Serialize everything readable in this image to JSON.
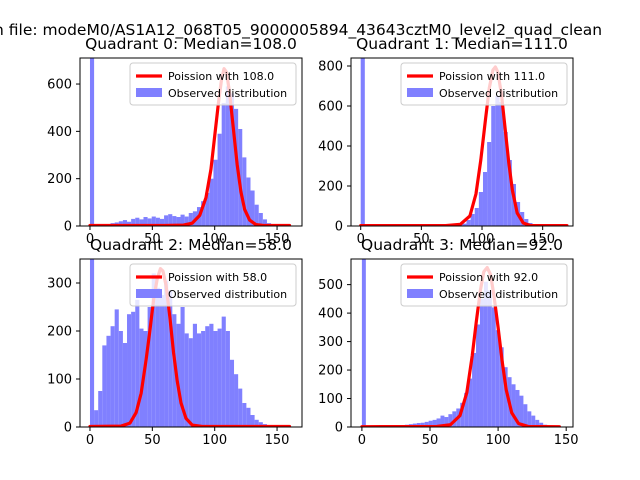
{
  "suptitle": "n file: modeM0/AS1A12_068T05_9000005894_43643cztM0_level2_quad_clean",
  "colors": {
    "hist": "#8080ff",
    "fit": "#ff0000",
    "axis": "#000000"
  },
  "chart_data": [
    {
      "type": "bar",
      "title": "Quadrant 0: Median=108.0",
      "legend": {
        "fit_label": "Poission with 108.0",
        "hist_label": "Observed distribution",
        "placement": "top-right"
      },
      "xlim": [
        -8,
        170
      ],
      "ylim": [
        0,
        710
      ],
      "xticks": [
        0,
        50,
        100,
        150
      ],
      "yticks": [
        0,
        200,
        400,
        600
      ],
      "bin_width": 3.3,
      "bins": [
        {
          "x": 0,
          "y": 710
        },
        {
          "x": 3.3,
          "y": 0
        },
        {
          "x": 6.6,
          "y": 2
        },
        {
          "x": 9.9,
          "y": 5
        },
        {
          "x": 13.2,
          "y": 8
        },
        {
          "x": 16.5,
          "y": 12
        },
        {
          "x": 19.8,
          "y": 15
        },
        {
          "x": 23.1,
          "y": 20
        },
        {
          "x": 26.4,
          "y": 25
        },
        {
          "x": 29.7,
          "y": 18
        },
        {
          "x": 33.0,
          "y": 30
        },
        {
          "x": 36.3,
          "y": 35
        },
        {
          "x": 39.6,
          "y": 28
        },
        {
          "x": 42.9,
          "y": 38
        },
        {
          "x": 46.2,
          "y": 32
        },
        {
          "x": 49.5,
          "y": 40
        },
        {
          "x": 52.8,
          "y": 35
        },
        {
          "x": 56.1,
          "y": 30
        },
        {
          "x": 59.4,
          "y": 45
        },
        {
          "x": 62.7,
          "y": 50
        },
        {
          "x": 66.0,
          "y": 42
        },
        {
          "x": 69.3,
          "y": 38
        },
        {
          "x": 72.6,
          "y": 48
        },
        {
          "x": 75.9,
          "y": 40
        },
        {
          "x": 79.2,
          "y": 55
        },
        {
          "x": 82.5,
          "y": 62
        },
        {
          "x": 85.8,
          "y": 80
        },
        {
          "x": 89.1,
          "y": 105
        },
        {
          "x": 92.4,
          "y": 140
        },
        {
          "x": 95.7,
          "y": 200
        },
        {
          "x": 99.0,
          "y": 280
        },
        {
          "x": 102.3,
          "y": 390
        },
        {
          "x": 105.6,
          "y": 520
        },
        {
          "x": 108.9,
          "y": 590
        },
        {
          "x": 112.2,
          "y": 560
        },
        {
          "x": 115.5,
          "y": 495
        },
        {
          "x": 118.8,
          "y": 410
        },
        {
          "x": 122.1,
          "y": 290
        },
        {
          "x": 125.4,
          "y": 205
        },
        {
          "x": 128.7,
          "y": 150
        },
        {
          "x": 132.0,
          "y": 90
        },
        {
          "x": 135.3,
          "y": 55
        },
        {
          "x": 138.6,
          "y": 28
        },
        {
          "x": 141.9,
          "y": 12
        },
        {
          "x": 145.2,
          "y": 6
        },
        {
          "x": 148.5,
          "y": 3
        },
        {
          "x": 151.8,
          "y": 1
        }
      ],
      "fit_curve": [
        {
          "x": 0,
          "y": 2
        },
        {
          "x": 60,
          "y": 2
        },
        {
          "x": 75,
          "y": 4
        },
        {
          "x": 82,
          "y": 12
        },
        {
          "x": 88,
          "y": 45
        },
        {
          "x": 93,
          "y": 120
        },
        {
          "x": 97,
          "y": 240
        },
        {
          "x": 100,
          "y": 380
        },
        {
          "x": 103,
          "y": 520
        },
        {
          "x": 105.5,
          "y": 620
        },
        {
          "x": 107.5,
          "y": 665
        },
        {
          "x": 109.5,
          "y": 650
        },
        {
          "x": 112,
          "y": 560
        },
        {
          "x": 115,
          "y": 410
        },
        {
          "x": 118,
          "y": 260
        },
        {
          "x": 121,
          "y": 145
        },
        {
          "x": 124,
          "y": 70
        },
        {
          "x": 128,
          "y": 25
        },
        {
          "x": 133,
          "y": 6
        },
        {
          "x": 140,
          "y": 2
        },
        {
          "x": 160,
          "y": 2
        }
      ]
    },
    {
      "type": "bar",
      "title": "Quadrant 1: Median=111.0",
      "legend": {
        "fit_label": "Poission with 111.0",
        "hist_label": "Observed distribution",
        "placement": "top-right"
      },
      "xlim": [
        -8,
        175
      ],
      "ylim": [
        0,
        840
      ],
      "xticks": [
        0,
        50,
        100,
        150
      ],
      "yticks": [
        0,
        200,
        400,
        600,
        800
      ],
      "bin_width": 3.4,
      "bins": [
        {
          "x": 0,
          "y": 840
        },
        {
          "x": 3.4,
          "y": 0
        },
        {
          "x": 60,
          "y": 2
        },
        {
          "x": 63.4,
          "y": 3
        },
        {
          "x": 66.8,
          "y": 3
        },
        {
          "x": 70.2,
          "y": 5
        },
        {
          "x": 73.6,
          "y": 5
        },
        {
          "x": 77.0,
          "y": 7
        },
        {
          "x": 80.4,
          "y": 10
        },
        {
          "x": 83.8,
          "y": 12
        },
        {
          "x": 87.2,
          "y": 30
        },
        {
          "x": 90.6,
          "y": 60
        },
        {
          "x": 94.0,
          "y": 90
        },
        {
          "x": 97.4,
          "y": 170
        },
        {
          "x": 100.8,
          "y": 270
        },
        {
          "x": 104.2,
          "y": 420
        },
        {
          "x": 107.6,
          "y": 600
        },
        {
          "x": 111.0,
          "y": 650
        },
        {
          "x": 114.4,
          "y": 620
        },
        {
          "x": 117.8,
          "y": 470
        },
        {
          "x": 121.2,
          "y": 330
        },
        {
          "x": 124.6,
          "y": 210
        },
        {
          "x": 128.0,
          "y": 120
        },
        {
          "x": 131.4,
          "y": 70
        },
        {
          "x": 134.8,
          "y": 35
        },
        {
          "x": 138.2,
          "y": 15
        },
        {
          "x": 141.6,
          "y": 6
        },
        {
          "x": 145.0,
          "y": 3
        }
      ],
      "fit_curve": [
        {
          "x": 0,
          "y": 2
        },
        {
          "x": 70,
          "y": 2
        },
        {
          "x": 82,
          "y": 8
        },
        {
          "x": 90,
          "y": 50
        },
        {
          "x": 95,
          "y": 160
        },
        {
          "x": 99,
          "y": 330
        },
        {
          "x": 103,
          "y": 540
        },
        {
          "x": 106,
          "y": 690
        },
        {
          "x": 109,
          "y": 780
        },
        {
          "x": 111,
          "y": 795
        },
        {
          "x": 113,
          "y": 770
        },
        {
          "x": 116,
          "y": 660
        },
        {
          "x": 119,
          "y": 490
        },
        {
          "x": 122,
          "y": 320
        },
        {
          "x": 125,
          "y": 180
        },
        {
          "x": 129,
          "y": 65
        },
        {
          "x": 134,
          "y": 15
        },
        {
          "x": 140,
          "y": 2
        },
        {
          "x": 170,
          "y": 2
        }
      ]
    },
    {
      "type": "bar",
      "title": "Quadrant 2: Median=58.0",
      "legend": {
        "fit_label": "Poission with 58.0",
        "hist_label": "Observed distribution",
        "placement": "top-right"
      },
      "xlim": [
        -8,
        170
      ],
      "ylim": [
        0,
        350
      ],
      "xticks": [
        0,
        50,
        100,
        150
      ],
      "yticks": [
        0,
        100,
        200,
        300
      ],
      "bin_width": 3.3,
      "bins": [
        {
          "x": 0,
          "y": 350
        },
        {
          "x": 3.3,
          "y": 35
        },
        {
          "x": 6.6,
          "y": 75
        },
        {
          "x": 9.9,
          "y": 170
        },
        {
          "x": 13.2,
          "y": 190
        },
        {
          "x": 16.5,
          "y": 210
        },
        {
          "x": 19.8,
          "y": 245
        },
        {
          "x": 23.1,
          "y": 200
        },
        {
          "x": 26.4,
          "y": 175
        },
        {
          "x": 29.7,
          "y": 235
        },
        {
          "x": 33.0,
          "y": 240
        },
        {
          "x": 36.3,
          "y": 265
        },
        {
          "x": 39.6,
          "y": 205
        },
        {
          "x": 42.9,
          "y": 200
        },
        {
          "x": 46.2,
          "y": 250
        },
        {
          "x": 49.5,
          "y": 320
        },
        {
          "x": 52.8,
          "y": 290
        },
        {
          "x": 56.1,
          "y": 275
        },
        {
          "x": 59.4,
          "y": 305
        },
        {
          "x": 62.7,
          "y": 285
        },
        {
          "x": 66.0,
          "y": 235
        },
        {
          "x": 69.3,
          "y": 215
        },
        {
          "x": 72.6,
          "y": 250
        },
        {
          "x": 75.9,
          "y": 195
        },
        {
          "x": 79.2,
          "y": 185
        },
        {
          "x": 82.5,
          "y": 215
        },
        {
          "x": 85.8,
          "y": 195
        },
        {
          "x": 89.1,
          "y": 200
        },
        {
          "x": 92.4,
          "y": 210
        },
        {
          "x": 95.7,
          "y": 215
        },
        {
          "x": 99.0,
          "y": 200
        },
        {
          "x": 102.3,
          "y": 205
        },
        {
          "x": 105.6,
          "y": 230
        },
        {
          "x": 108.9,
          "y": 200
        },
        {
          "x": 112.2,
          "y": 140
        },
        {
          "x": 115.5,
          "y": 110
        },
        {
          "x": 118.8,
          "y": 80
        },
        {
          "x": 122.1,
          "y": 50
        },
        {
          "x": 125.4,
          "y": 40
        },
        {
          "x": 128.7,
          "y": 25
        },
        {
          "x": 132.0,
          "y": 15
        },
        {
          "x": 135.3,
          "y": 10
        },
        {
          "x": 138.6,
          "y": 6
        },
        {
          "x": 141.9,
          "y": 3
        },
        {
          "x": 145.2,
          "y": 2
        }
      ],
      "fit_curve": [
        {
          "x": 0,
          "y": 1
        },
        {
          "x": 25,
          "y": 2
        },
        {
          "x": 32,
          "y": 8
        },
        {
          "x": 37,
          "y": 30
        },
        {
          "x": 41,
          "y": 70
        },
        {
          "x": 45,
          "y": 140
        },
        {
          "x": 48,
          "y": 200
        },
        {
          "x": 51,
          "y": 265
        },
        {
          "x": 54,
          "y": 310
        },
        {
          "x": 56.5,
          "y": 330
        },
        {
          "x": 58.5,
          "y": 325
        },
        {
          "x": 61,
          "y": 295
        },
        {
          "x": 64,
          "y": 230
        },
        {
          "x": 67,
          "y": 155
        },
        {
          "x": 70,
          "y": 95
        },
        {
          "x": 73,
          "y": 50
        },
        {
          "x": 77,
          "y": 18
        },
        {
          "x": 82,
          "y": 4
        },
        {
          "x": 90,
          "y": 1
        },
        {
          "x": 160,
          "y": 1
        }
      ]
    },
    {
      "type": "bar",
      "title": "Quadrant 3: Median=92.0",
      "legend": {
        "fit_label": "Poission with 92.0",
        "hist_label": "Observed distribution",
        "placement": "top-right"
      },
      "xlim": [
        -8,
        155
      ],
      "ylim": [
        0,
        590
      ],
      "xticks": [
        0,
        50,
        100,
        150
      ],
      "yticks": [
        0,
        100,
        200,
        300,
        400,
        500
      ],
      "bin_width": 2.9,
      "bins": [
        {
          "x": 0,
          "y": 590
        },
        {
          "x": 2.9,
          "y": 0
        },
        {
          "x": 20.0,
          "y": 3
        },
        {
          "x": 22.9,
          "y": 4
        },
        {
          "x": 25.8,
          "y": 5
        },
        {
          "x": 28.7,
          "y": 6
        },
        {
          "x": 31.6,
          "y": 8
        },
        {
          "x": 34.5,
          "y": 10
        },
        {
          "x": 37.4,
          "y": 12
        },
        {
          "x": 40.3,
          "y": 14
        },
        {
          "x": 43.2,
          "y": 15
        },
        {
          "x": 46.1,
          "y": 18
        },
        {
          "x": 49.0,
          "y": 22
        },
        {
          "x": 51.9,
          "y": 25
        },
        {
          "x": 54.8,
          "y": 30
        },
        {
          "x": 57.7,
          "y": 40
        },
        {
          "x": 60.6,
          "y": 35
        },
        {
          "x": 63.5,
          "y": 45
        },
        {
          "x": 66.4,
          "y": 55
        },
        {
          "x": 69.3,
          "y": 65
        },
        {
          "x": 72.2,
          "y": 85
        },
        {
          "x": 75.1,
          "y": 120
        },
        {
          "x": 78.0,
          "y": 170
        },
        {
          "x": 80.9,
          "y": 260
        },
        {
          "x": 83.8,
          "y": 360
        },
        {
          "x": 86.7,
          "y": 450
        },
        {
          "x": 89.6,
          "y": 510
        },
        {
          "x": 92.5,
          "y": 480
        },
        {
          "x": 95.4,
          "y": 420
        },
        {
          "x": 98.3,
          "y": 340
        },
        {
          "x": 101.2,
          "y": 280
        },
        {
          "x": 104.1,
          "y": 210
        },
        {
          "x": 107.0,
          "y": 175
        },
        {
          "x": 109.9,
          "y": 150
        },
        {
          "x": 112.8,
          "y": 130
        },
        {
          "x": 115.7,
          "y": 110
        },
        {
          "x": 118.6,
          "y": 80
        },
        {
          "x": 121.5,
          "y": 55
        },
        {
          "x": 124.4,
          "y": 40
        },
        {
          "x": 127.3,
          "y": 25
        },
        {
          "x": 130.2,
          "y": 15
        },
        {
          "x": 133.1,
          "y": 8
        },
        {
          "x": 136.0,
          "y": 4
        },
        {
          "x": 138.9,
          "y": 2
        }
      ],
      "fit_curve": [
        {
          "x": 0,
          "y": 1
        },
        {
          "x": 55,
          "y": 2
        },
        {
          "x": 65,
          "y": 8
        },
        {
          "x": 72,
          "y": 40
        },
        {
          "x": 77,
          "y": 120
        },
        {
          "x": 81,
          "y": 250
        },
        {
          "x": 84,
          "y": 370
        },
        {
          "x": 87,
          "y": 480
        },
        {
          "x": 89.5,
          "y": 545
        },
        {
          "x": 92,
          "y": 560
        },
        {
          "x": 94.5,
          "y": 535
        },
        {
          "x": 97,
          "y": 460
        },
        {
          "x": 100,
          "y": 350
        },
        {
          "x": 103,
          "y": 230
        },
        {
          "x": 106,
          "y": 130
        },
        {
          "x": 110,
          "y": 50
        },
        {
          "x": 115,
          "y": 12
        },
        {
          "x": 122,
          "y": 2
        },
        {
          "x": 145,
          "y": 1
        }
      ]
    }
  ]
}
